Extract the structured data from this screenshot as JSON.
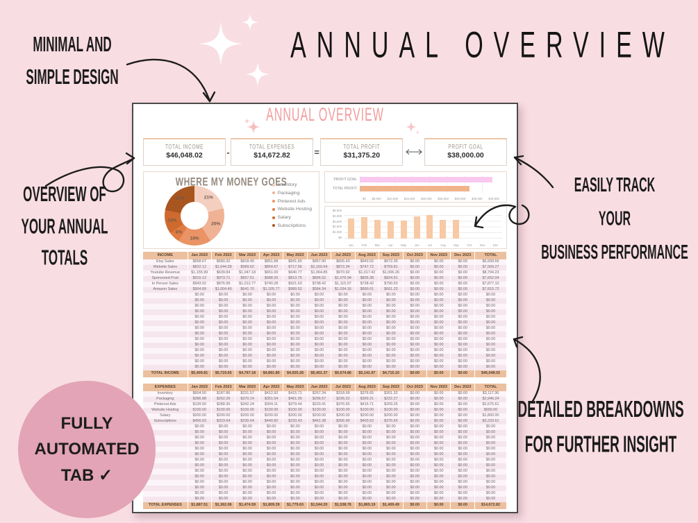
{
  "page_title": "ANNUAL OVERVIEW",
  "annotations": {
    "design_lines": [
      "MINIMAL AND",
      "SIMPLE DESIGN"
    ],
    "overview_lines": [
      "OVERVIEW OF",
      "YOUR ANNUAL",
      "TOTALS"
    ],
    "badge_lines": [
      "FULLY",
      "AUTOMATED",
      "TAB ✓"
    ],
    "track_lines": [
      "EASILY TRACK",
      "YOUR",
      "BUSINESS PERFORMANCE"
    ],
    "breakdown_lines": [
      "DETAILED BREAKDOWNS",
      "FOR FURTHER INSIGHT"
    ]
  },
  "colors": {
    "background": "#f8dde3",
    "badge": "#e2a4b6",
    "sheet_title": "#f29c9c",
    "table_header": "#ecc09e"
  },
  "sheet": {
    "title": "ANNUAL OVERVIEW",
    "summary_boxes": [
      {
        "label": "TOTAL INCOME",
        "value": "$46,048.02"
      },
      {
        "label": "TOTAL EXPENSES",
        "value": "$14,672.82"
      },
      {
        "label": "TOTAL PROFIT",
        "value": "$31,375.20"
      },
      {
        "label": "PROFIT GOAL",
        "value": "$38,000.00"
      }
    ],
    "minus": "-",
    "equals": "="
  },
  "chart_data": [
    {
      "type": "pie",
      "title": "WHERE MY MONEY GOES",
      "labels": [
        "Inventory",
        "Packaging",
        "Pinterest Ads",
        "Website Hosting",
        "Salary",
        "Subscriptions"
      ],
      "values": [
        21,
        20,
        18,
        6,
        13,
        22
      ],
      "value_labels": [
        "21%",
        "20%",
        "18%",
        "6%",
        "13%",
        "22%"
      ],
      "colors": [
        "#f4cfc0",
        "#f0b295",
        "#ea9365",
        "#e07b42",
        "#cf6a2f",
        "#a8551f"
      ],
      "donut": true,
      "legend_position": "right"
    },
    {
      "type": "bar",
      "orientation": "horizontal",
      "categories": [
        "PROFIT GOAL",
        "TOTAL PROFIT"
      ],
      "values": [
        38000,
        31375.2
      ],
      "colors": [
        "#f9c8ef",
        "#f1b38b"
      ],
      "xlim": [
        0,
        40000
      ],
      "xtick_labels": [
        "$0",
        "$5,000",
        "$10,000",
        "$15,000",
        "$20,000",
        "$25,000",
        "$30,000",
        "$35,000",
        "$40,000"
      ],
      "grid": true
    },
    {
      "type": "bar",
      "categories": [
        "Jan",
        "Feb",
        "Mar",
        "Apr",
        "May",
        "Jun",
        "Jul",
        "Aug",
        "Sep",
        "Oct",
        "Nov",
        "Dec"
      ],
      "values": [
        3500,
        3800,
        3250,
        3050,
        3150,
        3850,
        4150,
        3250,
        3300,
        0,
        0,
        0
      ],
      "color": "#f7c9a4",
      "ylim": [
        0,
        5000
      ],
      "ytick_labels": [
        "$0",
        "$1,000",
        "$2,000",
        "$3,000",
        "$4,000",
        "$5,000"
      ],
      "grid": true
    },
    {
      "type": "table",
      "name": "income",
      "columns": [
        "INCOME",
        "Jan 2023",
        "Feb 2023",
        "Mar 2023",
        "Apr 2023",
        "May 2023",
        "Jun 2023",
        "Jul 2023",
        "Aug 2023",
        "Sep 2023",
        "Oct 2023",
        "Nov 2023",
        "Dec 2023",
        "TOTAL"
      ],
      "rows": [
        [
          "Etsy Sales",
          "$668.67",
          "$580.32",
          "$818.40",
          "$851.88",
          "$841.65",
          "$957.90",
          "$605.43",
          "$943.02",
          "$672.39",
          "$0.00",
          "$0.00",
          "$0.00",
          "$6,939.66"
        ],
        [
          "Website Sales",
          "$822.12",
          "$1,044.39",
          "$589.62",
          "$854.67",
          "$717.96",
          "$1,160.64",
          "$872.34",
          "$747.72",
          "$759.81",
          "$0.00",
          "$0.00",
          "$0.00",
          "$7,569.27"
        ],
        [
          "Youtube Revenue",
          "$1,155.99",
          "$639.84",
          "$1,047.18",
          "$651.00",
          "$640.77",
          "$1,064.85",
          "$970.92",
          "$1,017.42",
          "$1,006.26",
          "$0.00",
          "$0.00",
          "$0.00",
          "$8,794.23"
        ],
        [
          "Sponsored Post",
          "$915.12",
          "$973.71",
          "$657.51",
          "$688.20",
          "$813.75",
          "$896.52",
          "$1,076.94",
          "$805.38",
          "$824.91",
          "$0.00",
          "$0.00",
          "$0.00",
          "$7,652.04"
        ],
        [
          "In Person Sales",
          "$943.02",
          "$876.99",
          "$1,012.77",
          "$740.28",
          "$921.63",
          "$738.42",
          "$1,115.07",
          "$738.42",
          "$790.50",
          "$0.00",
          "$0.00",
          "$0.00",
          "$7,877.10"
        ],
        [
          "Amazon Sales",
          "$904.89",
          "$1,004.40",
          "$641.70",
          "$1,105.77",
          "$989.52",
          "$584.34",
          "$1,034.16",
          "$890.01",
          "$661.23",
          "$0.00",
          "$0.00",
          "$0.00",
          "$7,815.72"
        ]
      ],
      "empty_rows": 14,
      "empty_cell": "$0.00",
      "total_row": [
        "TOTAL INCOME",
        "$5,409.81",
        "$5,719.65",
        "$4,767.18",
        "$4,891.80",
        "$4,925.28",
        "$5,401.37",
        "$5,674.86",
        "$5,141.97",
        "$4,715.10",
        "$0.00",
        "$0.00",
        "$0.00",
        "$46,048.02"
      ]
    },
    {
      "type": "table",
      "name": "expenses",
      "columns": [
        "EXPENSES",
        "Jan 2023",
        "Feb 2023",
        "Mar 2023",
        "Apr 2023",
        "May 2023",
        "Jun 2023",
        "Jul 2023",
        "Aug 2023",
        "Sep 2023",
        "Oct 2023",
        "Nov 2023",
        "Dec 2023",
        "TOTAL"
      ],
      "rows": [
        [
          "Inventory",
          "$604.50",
          "$187.86",
          "$231.57",
          "$412.92",
          "$415.71",
          "$267.34",
          "$318.99",
          "$376.65",
          "$301.32",
          "$0.00",
          "$0.00",
          "$0.00",
          "$3,117.36"
        ],
        [
          "Packaging",
          "$386.88",
          "$262.26",
          "$370.14",
          "$351.54",
          "$461.05",
          "$296.57",
          "$236.22",
          "$369.21",
          "$222.27",
          "$0.00",
          "$0.00",
          "$0.00",
          "$2,946.24"
        ],
        [
          "Pinterest Ads",
          "$139.50",
          "$288.30",
          "$342.24",
          "$304.11",
          "$379.44",
          "$220.41",
          "$376.65",
          "$415.71",
          "$209.25",
          "$0.00",
          "$0.00",
          "$0.00",
          "$2,675.61"
        ],
        [
          "Website Hosting",
          "$100.00",
          "$100.00",
          "$100.00",
          "$100.00",
          "$100.00",
          "$100.00",
          "$100.00",
          "$100.00",
          "$100.00",
          "$0.00",
          "$0.00",
          "$0.00",
          "$900.00"
        ],
        [
          "Salary",
          "$200.00",
          "$200.00",
          "$200.00",
          "$200.00",
          "$200.00",
          "$200.00",
          "$200.00",
          "$200.00",
          "$200.00",
          "$0.00",
          "$0.00",
          "$0.00",
          "$1,800.00"
        ],
        [
          "Subscriptions",
          "$456.63",
          "$323.64",
          "$230.64",
          "$440.82",
          "$233.43",
          "$461.38",
          "$306.90",
          "$403.62",
          "$376.65",
          "$0.00",
          "$0.00",
          "$0.00",
          "$3,233.61"
        ]
      ],
      "empty_rows": 14,
      "empty_cell": "$0.00",
      "total_row": [
        "TOTAL EXPENSES",
        "$1,887.51",
        "$1,362.06",
        "$1,474.59",
        "$1,809.39",
        "$1,779.63",
        "$1,544.20",
        "$1,538.76",
        "$1,865.19",
        "$1,409.49",
        "$0.00",
        "$0.00",
        "$0.00",
        "$14,672.82"
      ]
    }
  ]
}
